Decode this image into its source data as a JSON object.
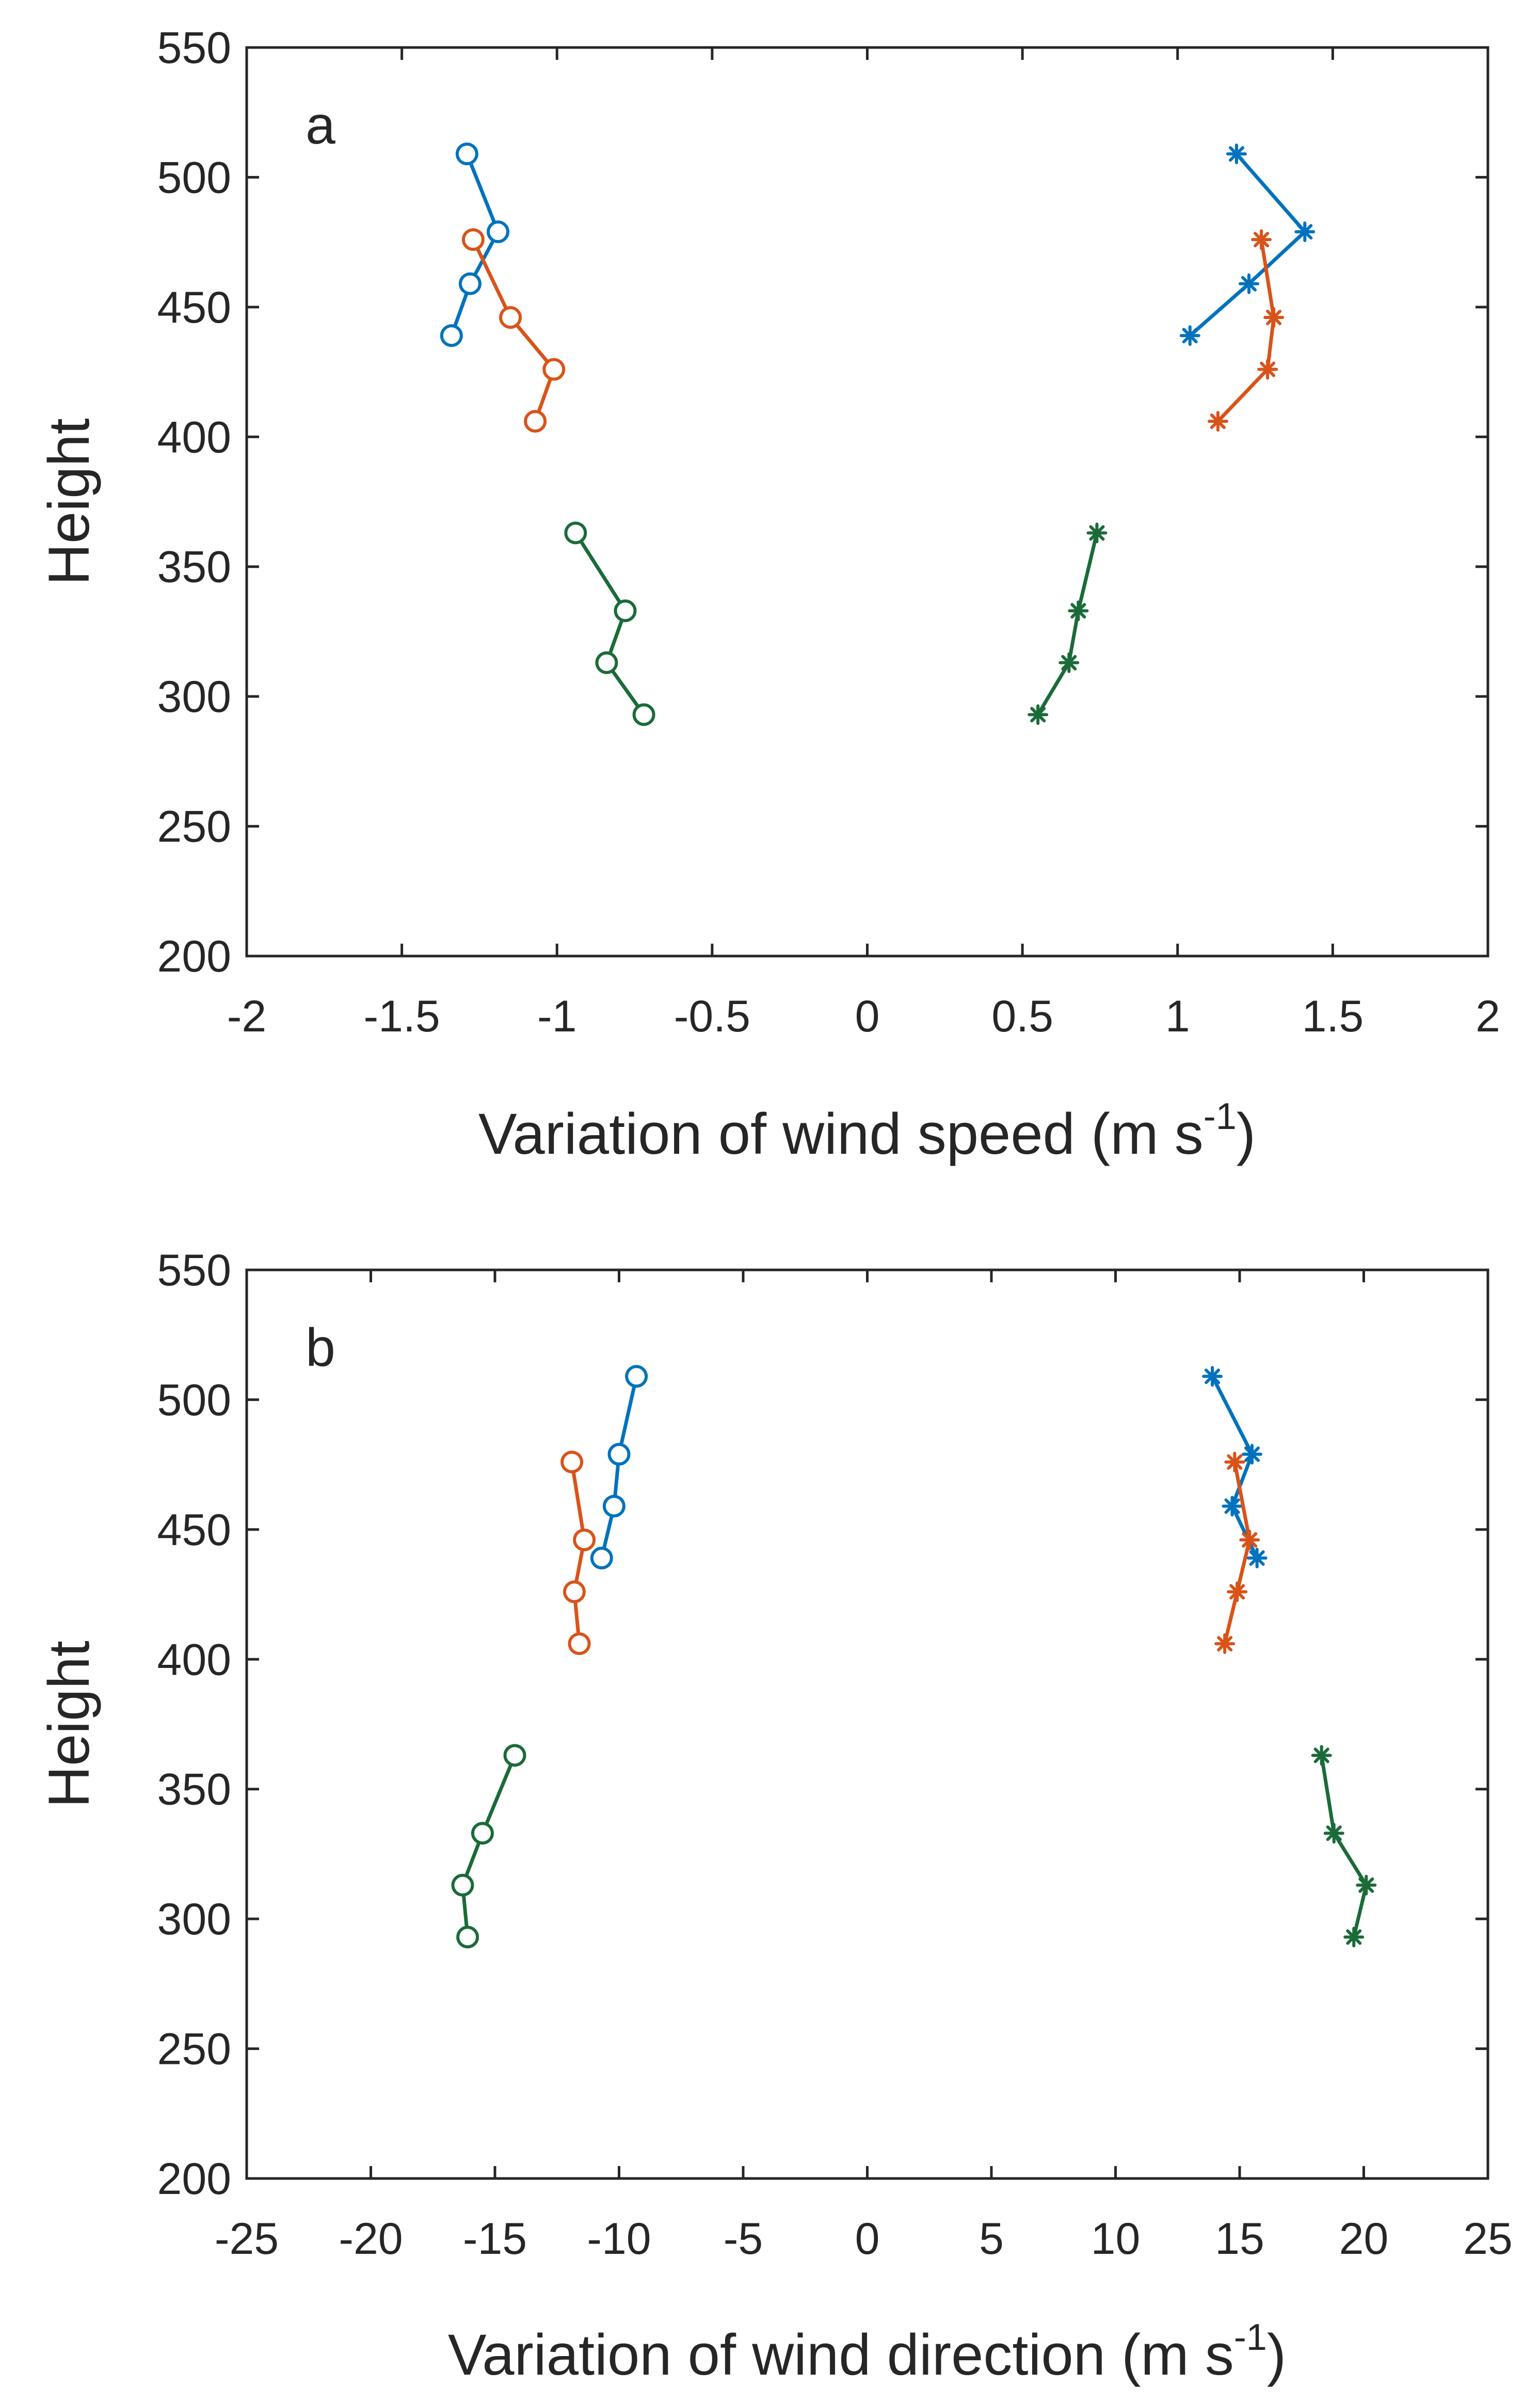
{
  "chart_data": [
    {
      "type": "line",
      "panel_label": "a",
      "xlabel": "Variation of wind speed (m s",
      "xlabel_sup": "-1",
      "xlabel_close": ")",
      "ylabel": "Height",
      "xlim": [
        -2,
        2
      ],
      "ylim": [
        200,
        550
      ],
      "xticks": [
        -2,
        -1.5,
        -1,
        -0.5,
        0,
        0.5,
        1,
        1.5,
        2
      ],
      "xtick_labels": [
        "-2",
        "-1.5",
        "-1",
        "-0.5",
        "0",
        "0.5",
        "1",
        "1.5",
        "2"
      ],
      "yticks": [
        200,
        250,
        300,
        350,
        400,
        450,
        500,
        550
      ],
      "ytick_labels": [
        "200",
        "250",
        "300",
        "350",
        "400",
        "450",
        "500",
        "550"
      ],
      "series": [
        {
          "name": "blue-negative",
          "color": "#0072BD",
          "marker": "circle",
          "x": [
            -1.29,
            -1.19,
            -1.28,
            -1.34
          ],
          "y": [
            509,
            479,
            459,
            439
          ]
        },
        {
          "name": "orange-negative",
          "color": "#D95319",
          "marker": "circle",
          "x": [
            -1.27,
            -1.15,
            -1.01,
            -1.07
          ],
          "y": [
            476,
            446,
            426,
            406
          ]
        },
        {
          "name": "green-negative",
          "color": "#1A6B38",
          "marker": "circle",
          "x": [
            -0.94,
            -0.78,
            -0.84,
            -0.72
          ],
          "y": [
            363,
            333,
            313,
            293
          ]
        },
        {
          "name": "blue-positive",
          "color": "#0072BD",
          "marker": "asterisk",
          "x": [
            1.19,
            1.41,
            1.23,
            1.04
          ],
          "y": [
            509,
            479,
            459,
            439
          ]
        },
        {
          "name": "orange-positive",
          "color": "#D95319",
          "marker": "asterisk",
          "x": [
            1.27,
            1.31,
            1.29,
            1.13
          ],
          "y": [
            476,
            446,
            426,
            406
          ]
        },
        {
          "name": "green-positive",
          "color": "#1A6B38",
          "marker": "asterisk",
          "x": [
            0.74,
            0.68,
            0.65,
            0.55
          ],
          "y": [
            363,
            333,
            313,
            293
          ]
        }
      ]
    },
    {
      "type": "line",
      "panel_label": "b",
      "xlabel": "Variation of wind direction (m s",
      "xlabel_sup": "-1",
      "xlabel_close": ")",
      "ylabel": "Height",
      "xlim": [
        -25,
        25
      ],
      "ylim": [
        200,
        550
      ],
      "xticks": [
        -25,
        -20,
        -15,
        -10,
        -5,
        0,
        5,
        10,
        15,
        20,
        25
      ],
      "xtick_labels": [
        "-25",
        "-20",
        "-15",
        "-10",
        "-5",
        "0",
        "5",
        "10",
        "15",
        "20",
        "25"
      ],
      "yticks": [
        200,
        250,
        300,
        350,
        400,
        450,
        500,
        550
      ],
      "ytick_labels": [
        "200",
        "250",
        "300",
        "350",
        "400",
        "450",
        "500",
        "550"
      ],
      "series": [
        {
          "name": "blue-negative",
          "color": "#0072BD",
          "marker": "circle",
          "x": [
            -9.3,
            -10.0,
            -10.2,
            -10.7
          ],
          "y": [
            509,
            479,
            459,
            439
          ]
        },
        {
          "name": "orange-negative",
          "color": "#D95319",
          "marker": "circle",
          "x": [
            -11.9,
            -11.4,
            -11.8,
            -11.6
          ],
          "y": [
            476,
            446,
            426,
            406
          ]
        },
        {
          "name": "green-negative",
          "color": "#1A6B38",
          "marker": "circle",
          "x": [
            -14.2,
            -15.5,
            -16.3,
            -16.1
          ],
          "y": [
            363,
            333,
            313,
            293
          ]
        },
        {
          "name": "blue-positive",
          "color": "#0072BD",
          "marker": "asterisk",
          "x": [
            13.9,
            15.5,
            14.7,
            15.7
          ],
          "y": [
            509,
            479,
            459,
            439
          ]
        },
        {
          "name": "orange-positive",
          "color": "#D95319",
          "marker": "asterisk",
          "x": [
            14.8,
            15.4,
            14.9,
            14.4
          ],
          "y": [
            476,
            446,
            426,
            406
          ]
        },
        {
          "name": "green-positive",
          "color": "#1A6B38",
          "marker": "asterisk",
          "x": [
            18.3,
            18.8,
            20.1,
            19.6
          ],
          "y": [
            363,
            333,
            313,
            293
          ]
        }
      ]
    }
  ]
}
